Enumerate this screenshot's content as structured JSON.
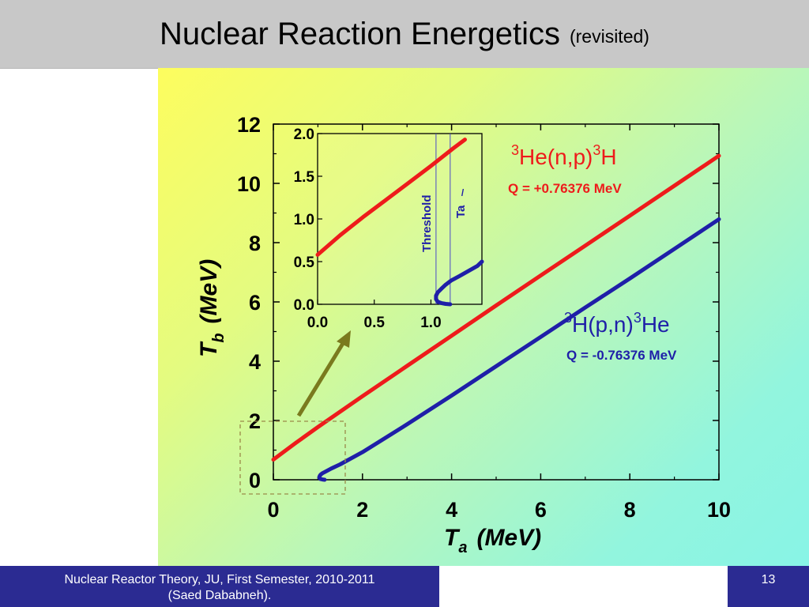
{
  "slide": {
    "title": "Nuclear Reaction Energetics",
    "subtitle": "(revisited)",
    "footer_course": "Nuclear Reactor Theory, JU, First Semester, 2010-2011",
    "footer_author": "(Saed Dababneh).",
    "page_number": "13"
  },
  "colors": {
    "red_series": "#ee1b1b",
    "blue_series": "#1f1fa8",
    "arrow": "#7a7a1e",
    "title_bar": "#c8c8c8",
    "footer_bar": "#2b2b92"
  },
  "chart_data": [
    {
      "type": "line",
      "xlabel": {
        "symbol": "T",
        "sub": "a",
        "unit": "(MeV)"
      },
      "ylabel": {
        "symbol": "T",
        "sub": "b",
        "unit": "(MeV)"
      },
      "xlim": [
        0,
        10
      ],
      "ylim": [
        0,
        12
      ],
      "xticks": [
        "0",
        "2",
        "4",
        "6",
        "8",
        "10"
      ],
      "yticks": [
        "0",
        "2",
        "4",
        "6",
        "8",
        "10",
        "12"
      ],
      "series": [
        {
          "name_pre": "3",
          "name_a": "He(n,p)",
          "name_mid": "3",
          "name_b": "H",
          "q_label": "Q = +0.76376 MeV",
          "color": "#ee1b1b",
          "x": [
            0,
            0.5,
            1,
            1.5,
            2,
            3,
            4,
            5,
            6,
            7,
            8,
            9,
            10
          ],
          "y": [
            0.68,
            1.24,
            1.78,
            2.3,
            2.82,
            3.84,
            4.86,
            5.88,
            6.89,
            7.9,
            8.91,
            9.92,
            10.93
          ]
        },
        {
          "name_pre": "3",
          "name_a": "H(p,n)",
          "name_mid": "3",
          "name_b": "He",
          "q_label": "Q = -0.76376 MeV",
          "color": "#1f1fa8",
          "x": [
            1.15,
            1.1,
            1.05,
            1.03,
            1.04,
            1.06,
            1.1,
            1.15,
            1.2,
            1.3,
            1.5,
            2,
            3,
            4,
            5,
            6,
            7,
            8,
            9,
            10
          ],
          "y": [
            0,
            0.01,
            0.03,
            0.08,
            0.13,
            0.17,
            0.22,
            0.26,
            0.3,
            0.38,
            0.52,
            0.93,
            1.87,
            2.84,
            3.83,
            4.82,
            5.81,
            6.79,
            7.79,
            8.79
          ]
        }
      ]
    },
    {
      "type": "line",
      "xlim": [
        0,
        1.45
      ],
      "ylim": [
        0,
        2
      ],
      "xticks": [
        "0.0",
        "0.5",
        "1.0"
      ],
      "yticks": [
        "0.0",
        "0.5",
        "1.0",
        "1.5",
        "2.0"
      ],
      "vlines": [
        {
          "x": 1.045,
          "label": "Threshold"
        },
        {
          "x": 1.17,
          "label": "Ta",
          "mark": "/"
        }
      ],
      "series": [
        {
          "color": "#ee1b1b",
          "x": [
            0,
            0.2,
            0.4,
            0.6,
            0.8,
            1.0,
            1.2,
            1.3
          ],
          "y": [
            0.58,
            0.81,
            1.02,
            1.22,
            1.42,
            1.62,
            1.83,
            1.93
          ]
        },
        {
          "color": "#1f1fa8",
          "x": [
            1.17,
            1.13,
            1.09,
            1.06,
            1.045,
            1.045,
            1.06,
            1.09,
            1.13,
            1.18,
            1.25,
            1.33,
            1.41,
            1.45
          ],
          "y": [
            0.0,
            0.005,
            0.015,
            0.03,
            0.06,
            0.1,
            0.14,
            0.18,
            0.23,
            0.28,
            0.33,
            0.39,
            0.45,
            0.5
          ]
        }
      ]
    }
  ]
}
